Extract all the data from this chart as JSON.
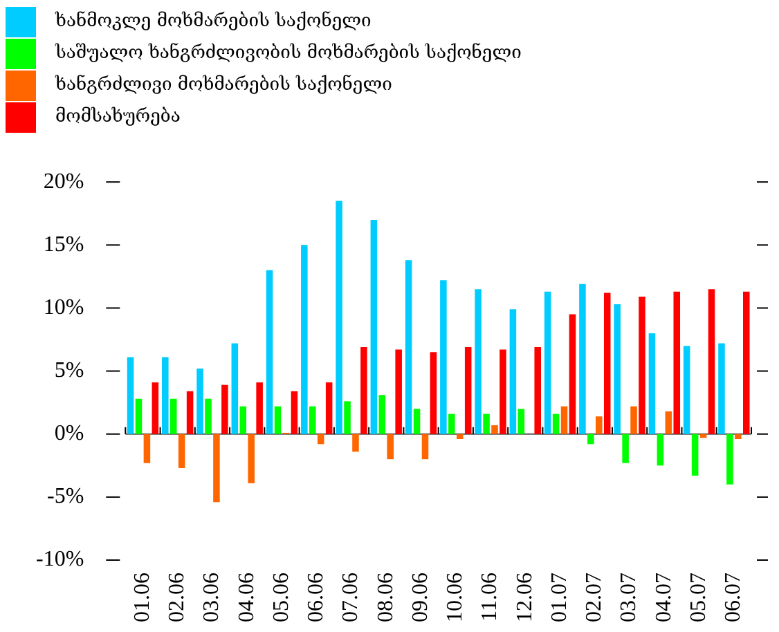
{
  "chart_data": {
    "type": "bar",
    "categories": [
      "01.06",
      "02.06",
      "03.06",
      "04.06",
      "05.06",
      "06.06",
      "07.06",
      "08.06",
      "09.06",
      "10.06",
      "11.06",
      "12.06",
      "01.07",
      "02.07",
      "03.07",
      "04.07",
      "05.07",
      "06.07"
    ],
    "series": [
      {
        "name": "ხანმოკლე მოხმარების საქონელი",
        "color": "#00ccff",
        "values": [
          6.1,
          6.1,
          5.2,
          7.2,
          13.0,
          15.0,
          18.5,
          17.0,
          13.8,
          12.2,
          11.5,
          9.9,
          11.3,
          11.9,
          10.3,
          8.0,
          7.0,
          7.2
        ]
      },
      {
        "name": "საშუალო ხანგრძლივობის მოხმარების საქონელი",
        "color": "#00ff00",
        "values": [
          2.8,
          2.8,
          2.8,
          2.2,
          2.2,
          2.2,
          2.6,
          3.1,
          2.0,
          1.6,
          1.6,
          2.0,
          1.6,
          -0.8,
          -2.3,
          -2.5,
          -3.3,
          -4.0
        ]
      },
      {
        "name": "ხანგრძლივი მოხმარების საქონელი",
        "color": "#ff6600",
        "values": [
          -2.3,
          -2.7,
          -5.4,
          -3.9,
          0.1,
          -0.8,
          -1.4,
          -2.0,
          -2.0,
          -0.4,
          0.7,
          0,
          2.2,
          1.4,
          2.2,
          1.8,
          -0.3,
          -0.4
        ]
      },
      {
        "name": "მომსახურება",
        "color": "#ff0000",
        "values": [
          4.1,
          3.4,
          3.9,
          4.1,
          3.4,
          4.1,
          6.9,
          6.7,
          6.5,
          6.9,
          6.7,
          6.9,
          9.5,
          11.2,
          10.9,
          11.3,
          11.5,
          11.3
        ]
      }
    ],
    "ylim": [
      -10,
      20
    ],
    "yticks": [
      {
        "value": -10,
        "label": "-10%"
      },
      {
        "value": -5,
        "label": "-5%"
      },
      {
        "value": 0,
        "label": "0%"
      },
      {
        "value": 5,
        "label": "5%"
      },
      {
        "value": 10,
        "label": "10%"
      },
      {
        "value": 15,
        "label": "15%"
      },
      {
        "value": 20,
        "label": "20%"
      }
    ],
    "grid": false,
    "ref_lines": [
      {
        "axis": "y",
        "value": 0,
        "color": "#555555"
      }
    ],
    "legend": "top left"
  }
}
